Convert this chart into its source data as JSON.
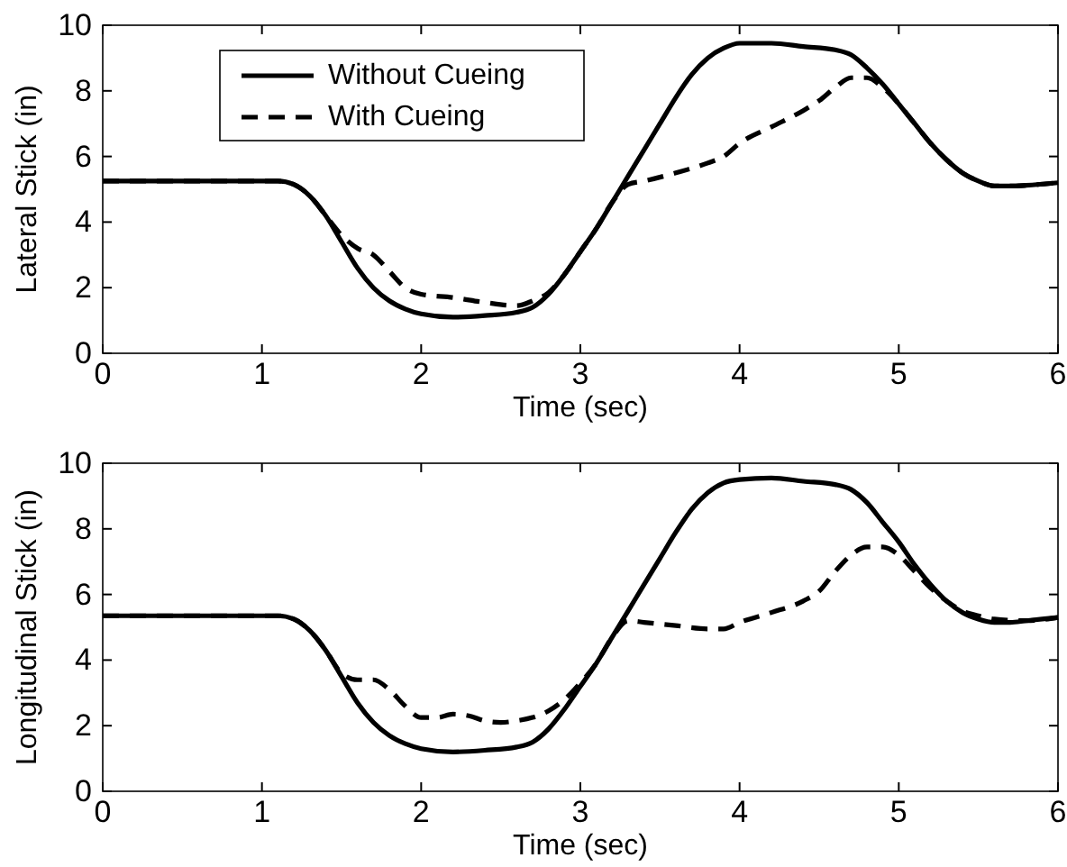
{
  "chart_data": [
    {
      "type": "line",
      "xlabel": "Time (sec)",
      "ylabel": "Lateral Stick (in)",
      "xlim": [
        0,
        6
      ],
      "ylim": [
        0,
        10
      ],
      "xticks": [
        0,
        1,
        2,
        3,
        4,
        5,
        6
      ],
      "yticks": [
        0,
        2,
        4,
        6,
        8,
        10
      ],
      "grid": false,
      "legend": "top left",
      "series": [
        {
          "name": "Without Cueing",
          "color": "#000000",
          "line_style": "solid",
          "x": [
            0,
            1,
            1.1,
            1.2,
            1.3,
            1.4,
            1.5,
            1.6,
            1.7,
            1.8,
            1.9,
            2,
            2.2,
            2.4,
            2.6,
            2.7,
            2.8,
            2.9,
            3,
            3.1,
            3.2,
            3.3,
            3.4,
            3.5,
            3.6,
            3.7,
            3.8,
            3.9,
            4,
            4.2,
            4.4,
            4.6,
            4.7,
            4.8,
            4.9,
            5,
            5.1,
            5.2,
            5.3,
            5.4,
            5.5,
            5.6,
            5.7,
            5.8,
            6
          ],
          "values": [
            5.25,
            5.25,
            5.25,
            5.15,
            4.8,
            4.2,
            3.4,
            2.6,
            2,
            1.6,
            1.35,
            1.2,
            1.1,
            1.15,
            1.25,
            1.4,
            1.8,
            2.4,
            3.1,
            3.8,
            4.6,
            5.4,
            6.2,
            7,
            7.8,
            8.5,
            9,
            9.3,
            9.45,
            9.45,
            9.35,
            9.25,
            9.1,
            8.7,
            8.2,
            7.6,
            7,
            6.4,
            5.9,
            5.5,
            5.25,
            5.1,
            5.1,
            5.12,
            5.2
          ]
        },
        {
          "name": "With Cueing",
          "color": "#000000",
          "line_style": "dashed",
          "x": [
            0,
            1,
            1.1,
            1.2,
            1.3,
            1.4,
            1.5,
            1.6,
            1.7,
            1.8,
            1.9,
            2,
            2.2,
            2.4,
            2.6,
            2.7,
            2.8,
            2.9,
            3,
            3.1,
            3.2,
            3.3,
            3.4,
            3.6,
            3.8,
            3.9,
            4,
            4.2,
            4.4,
            4.5,
            4.6,
            4.7,
            4.8,
            4.9,
            5,
            5.1,
            5.2,
            5.3,
            5.4,
            5.5,
            5.6,
            5.7,
            5.8,
            6
          ],
          "values": [
            5.25,
            5.25,
            5.25,
            5.15,
            4.8,
            4.2,
            3.6,
            3.2,
            3,
            2.5,
            2,
            1.8,
            1.7,
            1.55,
            1.45,
            1.6,
            1.85,
            2.4,
            3.1,
            3.8,
            4.6,
            5.15,
            5.25,
            5.5,
            5.8,
            6,
            6.4,
            6.9,
            7.4,
            7.7,
            8.1,
            8.4,
            8.4,
            8.1,
            7.6,
            7,
            6.4,
            5.9,
            5.5,
            5.25,
            5.1,
            5.1,
            5.12,
            5.2
          ]
        }
      ]
    },
    {
      "type": "line",
      "xlabel": "Time (sec)",
      "ylabel": "Longitudinal Stick (in)",
      "xlim": [
        0,
        6
      ],
      "ylim": [
        0,
        10
      ],
      "xticks": [
        0,
        1,
        2,
        3,
        4,
        5,
        6
      ],
      "yticks": [
        0,
        2,
        4,
        6,
        8,
        10
      ],
      "grid": false,
      "legend": false,
      "series": [
        {
          "color": "#000000",
          "line_style": "solid",
          "x": [
            0,
            1,
            1.1,
            1.2,
            1.3,
            1.4,
            1.5,
            1.6,
            1.7,
            1.8,
            1.9,
            2,
            2.2,
            2.4,
            2.6,
            2.7,
            2.8,
            2.9,
            3,
            3.1,
            3.2,
            3.3,
            3.4,
            3.5,
            3.6,
            3.7,
            3.8,
            3.9,
            4,
            4.2,
            4.4,
            4.6,
            4.7,
            4.8,
            4.9,
            5,
            5.1,
            5.2,
            5.3,
            5.4,
            5.5,
            5.6,
            5.7,
            5.8,
            6
          ],
          "values": [
            5.35,
            5.35,
            5.35,
            5.25,
            4.9,
            4.3,
            3.5,
            2.7,
            2.1,
            1.7,
            1.45,
            1.3,
            1.2,
            1.25,
            1.35,
            1.5,
            1.9,
            2.5,
            3.2,
            3.9,
            4.7,
            5.5,
            6.3,
            7.1,
            7.9,
            8.6,
            9.1,
            9.4,
            9.5,
            9.55,
            9.45,
            9.35,
            9.2,
            8.8,
            8.2,
            7.6,
            6.9,
            6.3,
            5.8,
            5.45,
            5.25,
            5.15,
            5.15,
            5.2,
            5.3
          ]
        },
        {
          "color": "#000000",
          "line_style": "dashed",
          "x": [
            0,
            1,
            1.1,
            1.2,
            1.3,
            1.4,
            1.5,
            1.6,
            1.7,
            1.8,
            1.9,
            2,
            2.1,
            2.2,
            2.3,
            2.4,
            2.5,
            2.6,
            2.7,
            2.8,
            2.9,
            3,
            3.1,
            3.2,
            3.3,
            3.4,
            3.6,
            3.8,
            3.9,
            4,
            4.2,
            4.4,
            4.5,
            4.6,
            4.7,
            4.8,
            4.9,
            5,
            5.1,
            5.2,
            5.3,
            5.4,
            5.5,
            5.6,
            5.8,
            6
          ],
          "values": [
            5.35,
            5.35,
            5.35,
            5.25,
            4.9,
            4.3,
            3.6,
            3.4,
            3.4,
            3.1,
            2.6,
            2.25,
            2.25,
            2.35,
            2.3,
            2.15,
            2.1,
            2.15,
            2.25,
            2.45,
            2.8,
            3.3,
            3.9,
            4.7,
            5.2,
            5.15,
            5.05,
            4.95,
            4.95,
            5.15,
            5.45,
            5.8,
            6.1,
            6.7,
            7.2,
            7.45,
            7.45,
            7.2,
            6.7,
            6.2,
            5.8,
            5.5,
            5.35,
            5.25,
            5.2,
            5.3
          ]
        }
      ]
    }
  ]
}
